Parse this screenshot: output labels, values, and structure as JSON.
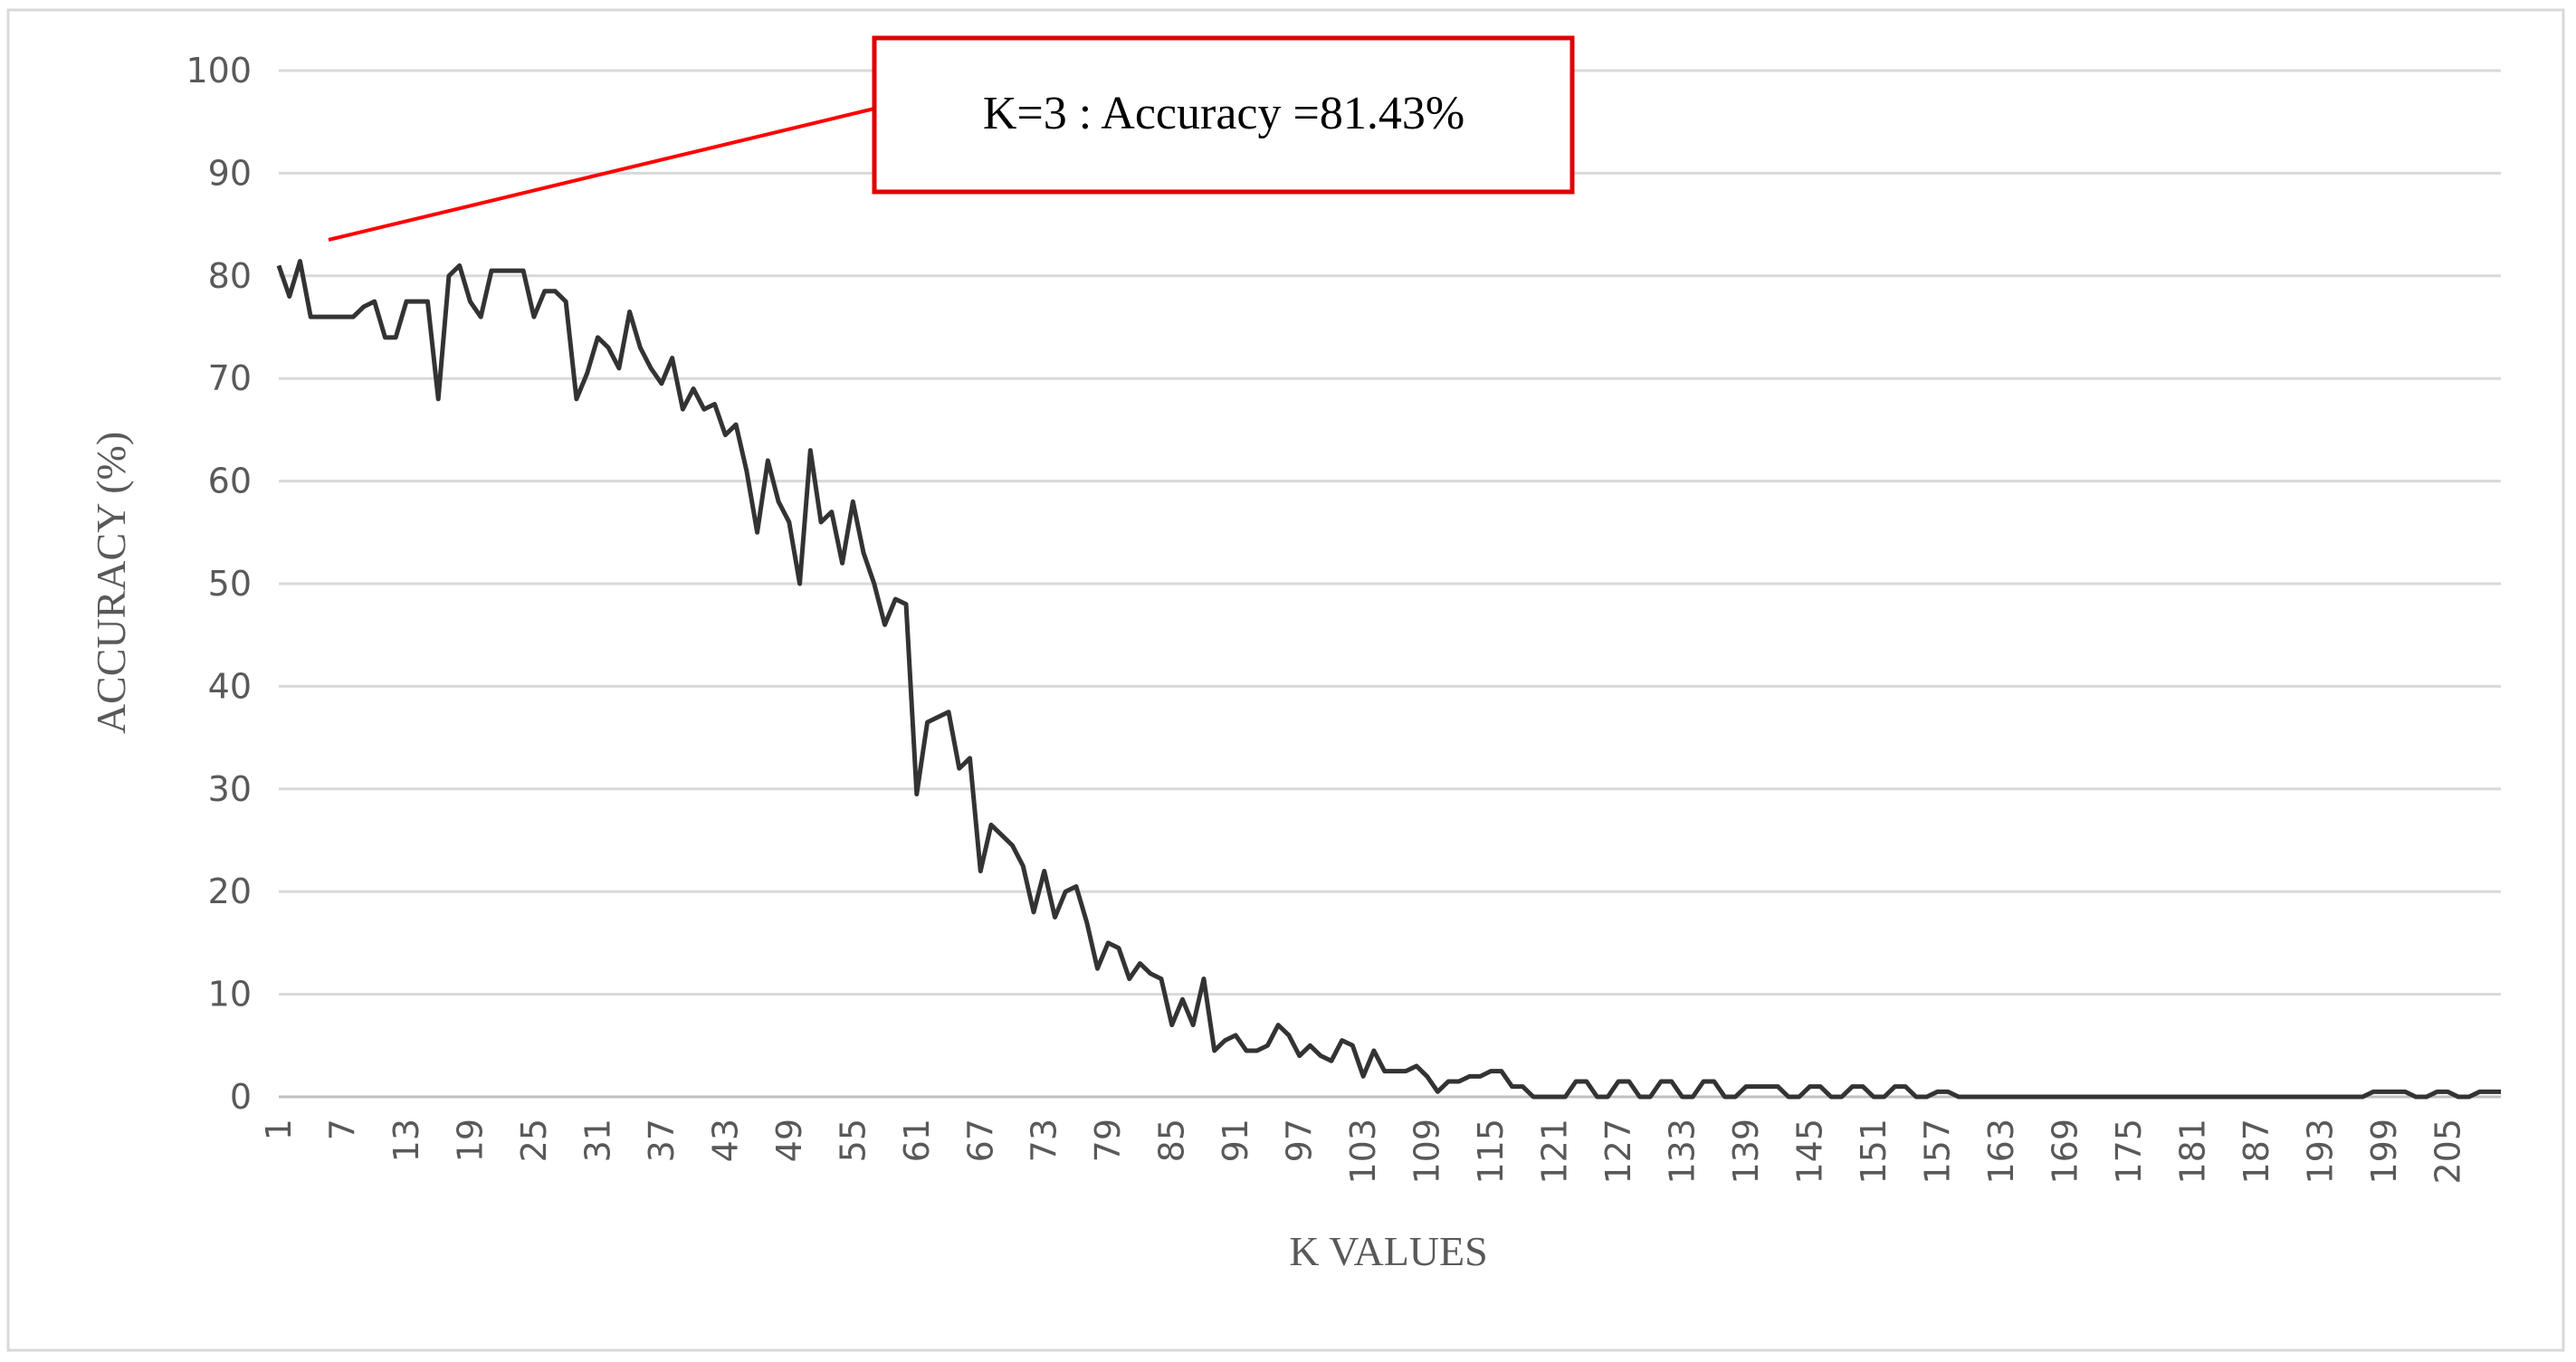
{
  "chart_data": {
    "type": "line",
    "x_label": "K VALUES",
    "y_label": "ACCURACY (%)",
    "annotation": "K=3 : Accuracy =81.43%",
    "color": "#333333",
    "grid": true,
    "xlim": [
      1,
      210
    ],
    "ylim": [
      0,
      100
    ],
    "xticks": [
      1,
      7,
      13,
      19,
      25,
      31,
      37,
      43,
      49,
      55,
      61,
      67,
      73,
      79,
      85,
      91,
      97,
      103,
      109,
      115,
      121,
      127,
      133,
      139,
      145,
      151,
      157,
      163,
      169,
      175,
      181,
      187,
      193,
      199,
      205
    ],
    "yticks": [
      0,
      10,
      20,
      30,
      40,
      50,
      60,
      70,
      80,
      90,
      100
    ],
    "x": [
      1,
      2,
      3,
      4,
      5,
      6,
      7,
      8,
      9,
      10,
      11,
      12,
      13,
      14,
      15,
      16,
      17,
      18,
      19,
      20,
      21,
      22,
      23,
      24,
      25,
      26,
      27,
      28,
      29,
      30,
      31,
      32,
      33,
      34,
      35,
      36,
      37,
      38,
      39,
      40,
      41,
      42,
      43,
      44,
      45,
      46,
      47,
      48,
      49,
      50,
      51,
      52,
      53,
      54,
      55,
      56,
      57,
      58,
      59,
      60,
      61,
      62,
      63,
      64,
      65,
      66,
      67,
      68,
      69,
      70,
      71,
      72,
      73,
      74,
      75,
      76,
      77,
      78,
      79,
      80,
      81,
      82,
      83,
      84,
      85,
      86,
      87,
      88,
      89,
      90,
      91,
      92,
      93,
      94,
      95,
      96,
      97,
      98,
      99,
      100,
      101,
      102,
      103,
      104,
      105,
      106,
      107,
      108,
      109,
      110,
      111,
      112,
      113,
      114,
      115,
      116,
      117,
      118,
      119,
      120,
      121,
      122,
      123,
      124,
      125,
      126,
      127,
      128,
      129,
      130,
      131,
      132,
      133,
      134,
      135,
      136,
      137,
      138,
      139,
      140,
      141,
      142,
      143,
      144,
      145,
      146,
      147,
      148,
      149,
      150,
      151,
      152,
      153,
      154,
      155,
      156,
      157,
      158,
      159,
      160,
      161,
      162,
      163,
      164,
      165,
      166,
      167,
      168,
      169,
      170,
      171,
      172,
      173,
      174,
      175,
      176,
      177,
      178,
      179,
      180,
      181,
      182,
      183,
      184,
      185,
      186,
      187,
      188,
      189,
      190,
      191,
      192,
      193,
      194,
      195,
      196,
      197,
      198,
      199,
      200,
      201,
      202,
      203,
      204,
      205,
      206,
      207,
      208,
      209,
      210
    ],
    "values": [
      81,
      78,
      81.43,
      76,
      76,
      76,
      76,
      76,
      77,
      77.5,
      74,
      74,
      77.5,
      77.5,
      77.5,
      68,
      80,
      81,
      77.5,
      76,
      80.5,
      80.5,
      80.5,
      80.5,
      76,
      78.5,
      78.5,
      77.5,
      68,
      70.5,
      74,
      73,
      71,
      76.5,
      73,
      71,
      69.5,
      72,
      67,
      69,
      67,
      67.5,
      64.5,
      65.5,
      61,
      55,
      62,
      58,
      56,
      50,
      63,
      56,
      57,
      52,
      58,
      53,
      50,
      46,
      48.5,
      48,
      29.5,
      36.5,
      37,
      37.5,
      32,
      33,
      22,
      26.5,
      25.5,
      24.5,
      22.5,
      18,
      22,
      17.5,
      20,
      20.5,
      17,
      12.5,
      15,
      14.5,
      11.5,
      13,
      12,
      11.5,
      7,
      9.5,
      7,
      11.5,
      4.5,
      5.5,
      6,
      4.5,
      4.5,
      5,
      7,
      6,
      4,
      5,
      4,
      3.5,
      5.5,
      5,
      2,
      4.5,
      2.5,
      2.5,
      2.5,
      3,
      2,
      0.5,
      1.5,
      1.5,
      2,
      2,
      2.5,
      2.5,
      1,
      1,
      0,
      0,
      0,
      0,
      1.5,
      1.5,
      0,
      0,
      1.5,
      1.5,
      0,
      0,
      1.5,
      1.5,
      0,
      0,
      1.5,
      1.5,
      0,
      0,
      1,
      1,
      1,
      1,
      0,
      0,
      1,
      1,
      0,
      0,
      1,
      1,
      0,
      0,
      1,
      1,
      0,
      0,
      0.5,
      0.5,
      0,
      0,
      0,
      0,
      0,
      0,
      0,
      0,
      0,
      0,
      0,
      0,
      0,
      0,
      0,
      0,
      0,
      0,
      0,
      0,
      0,
      0,
      0,
      0,
      0,
      0,
      0,
      0,
      0,
      0,
      0,
      0,
      0,
      0,
      0,
      0,
      0,
      0,
      0,
      0.5,
      0.5,
      0.5,
      0.5,
      0,
      0,
      0.5,
      0.5,
      0,
      0,
      0.5,
      0.5,
      0.5
    ]
  }
}
